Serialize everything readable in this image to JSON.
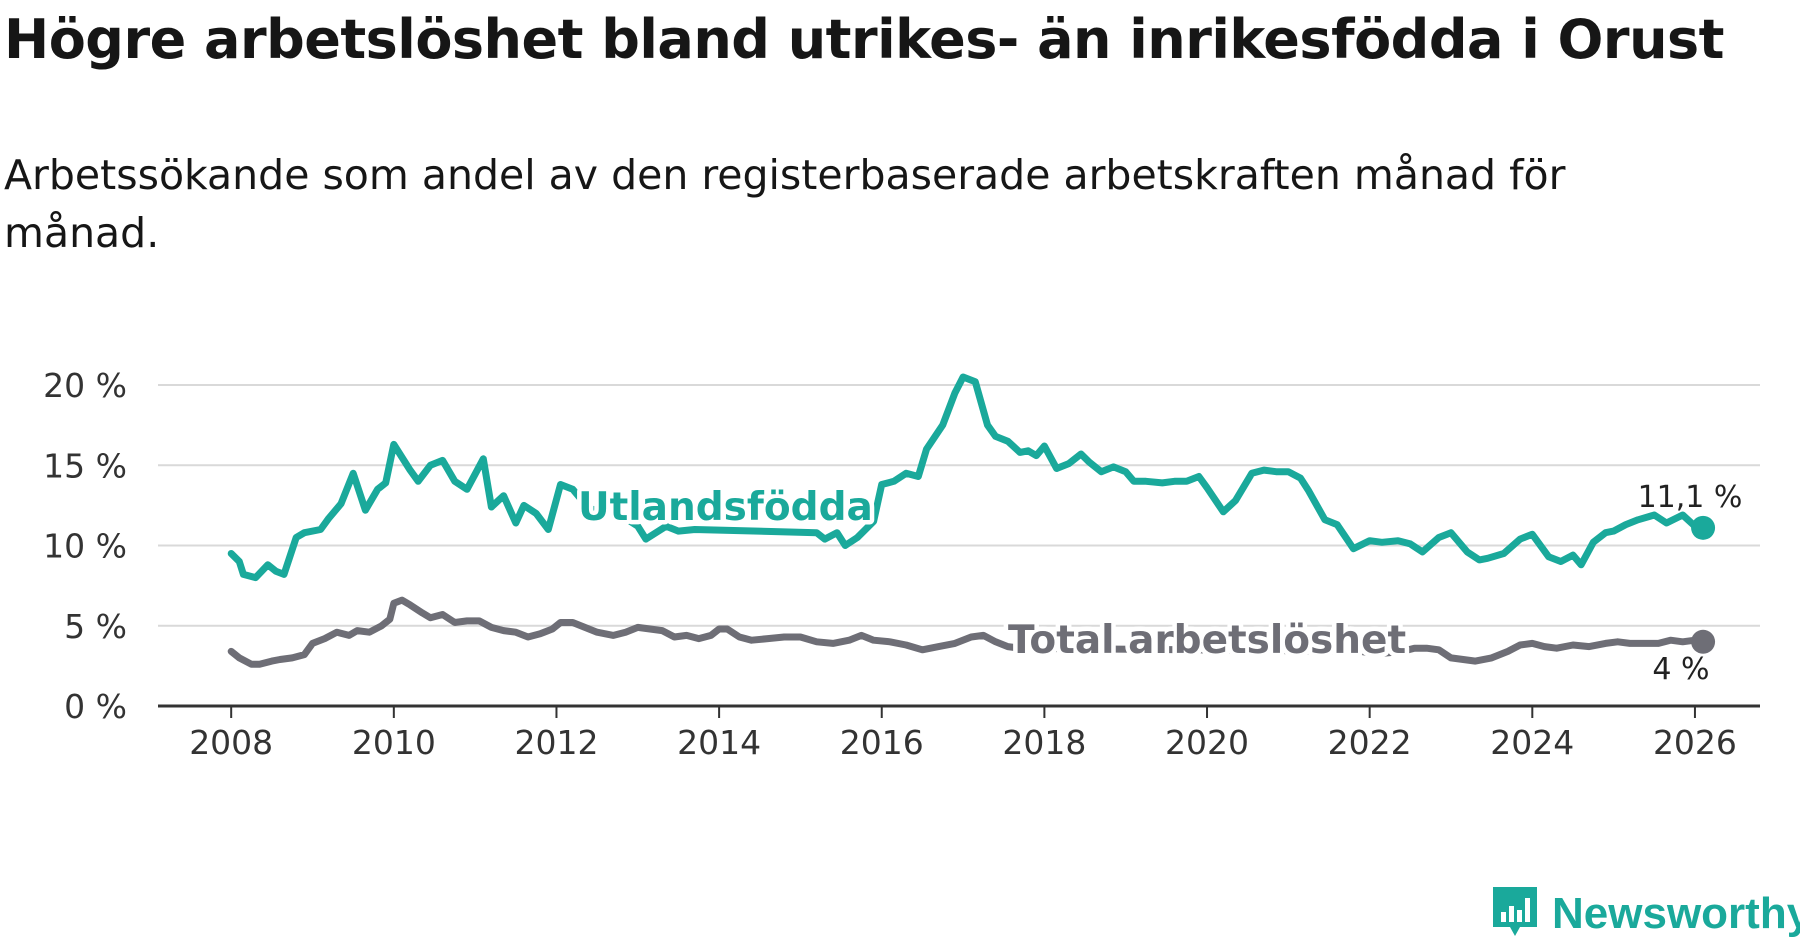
{
  "title": "Högre arbetslöshet bland utrikes- än inrikesfödda i Orust",
  "subtitle": "Arbetssökande som andel av den registerbaserade arbetskraften månad för månad.",
  "brand": {
    "name": "Newsworthy",
    "color": "#1aa99b"
  },
  "colors": {
    "foreign": "#1aa99b",
    "total": "#6e6e76",
    "grid": "#d9d9d9",
    "axis": "#333333"
  },
  "chart_data": {
    "type": "line",
    "ylim": [
      0,
      20
    ],
    "xlim": [
      2007.1,
      2026.8
    ],
    "yticks": [
      0,
      5,
      10,
      15,
      20
    ],
    "ytick_labels": [
      "0 %",
      "5 %",
      "10 %",
      "15 %",
      "20 %"
    ],
    "xticks": [
      2008,
      2010,
      2012,
      2014,
      2016,
      2018,
      2020,
      2022,
      2024,
      2026
    ],
    "xtick_labels": [
      "2008",
      "2010",
      "2012",
      "2014",
      "2016",
      "2018",
      "2020",
      "2022",
      "2024",
      "2026"
    ],
    "series": [
      {
        "name": "Utlandsfödda",
        "end_label": "11,1 %",
        "x": [
          2008.0,
          2008.1,
          2008.15,
          2008.3,
          2008.45,
          2008.55,
          2008.65,
          2008.8,
          2008.9,
          2009.1,
          2009.2,
          2009.35,
          2009.5,
          2009.65,
          2009.8,
          2009.9,
          2010.0,
          2010.2,
          2010.3,
          2010.45,
          2010.6,
          2010.75,
          2010.9,
          2011.1,
          2011.2,
          2011.35,
          2011.5,
          2011.6,
          2011.75,
          2011.9,
          2012.05,
          2012.2,
          2012.4,
          2012.5,
          2012.6,
          2013.0,
          2013.1,
          2013.35,
          2013.5,
          2013.7,
          2015.2,
          2015.3,
          2015.45,
          2015.55,
          2015.7,
          2015.9,
          2016.0,
          2016.15,
          2016.3,
          2016.45,
          2016.55,
          2016.75,
          2016.9,
          2017.0,
          2017.15,
          2017.3,
          2017.4,
          2017.55,
          2017.7,
          2017.8,
          2017.9,
          2018.0,
          2018.15,
          2018.3,
          2018.45,
          2018.55,
          2018.7,
          2018.85,
          2019.0,
          2019.1,
          2019.25,
          2019.45,
          2019.6,
          2019.75,
          2019.9,
          2020.0,
          2020.2,
          2020.35,
          2020.55,
          2020.7,
          2020.85,
          2021.0,
          2021.15,
          2021.25,
          2021.45,
          2021.6,
          2021.8,
          2022.0,
          2022.15,
          2022.35,
          2022.5,
          2022.65,
          2022.85,
          2023.0,
          2023.2,
          2023.35,
          2023.45,
          2023.65,
          2023.85,
          2024.0,
          2024.2,
          2024.35,
          2024.5,
          2024.6,
          2024.75,
          2024.9,
          2025.0,
          2025.15,
          2025.3,
          2025.5,
          2025.65,
          2025.85,
          2026.0,
          2026.1
        ],
        "values": [
          9.5,
          9.0,
          8.2,
          8.0,
          8.8,
          8.4,
          8.2,
          10.5,
          10.8,
          11.0,
          11.7,
          12.6,
          14.5,
          12.2,
          13.5,
          13.9,
          16.3,
          14.7,
          14.0,
          15.0,
          15.3,
          14.0,
          13.5,
          15.4,
          12.4,
          13.1,
          11.4,
          12.5,
          12.0,
          11.0,
          13.8,
          13.5,
          12.3,
          12.2,
          12.5,
          11.2,
          10.4,
          11.2,
          10.9,
          11.0,
          10.8,
          10.4,
          10.8,
          10.0,
          10.5,
          11.5,
          13.8,
          14.0,
          14.5,
          14.3,
          16.0,
          17.5,
          19.5,
          20.5,
          20.2,
          17.5,
          16.8,
          16.5,
          15.8,
          15.9,
          15.6,
          16.2,
          14.8,
          15.1,
          15.7,
          15.2,
          14.6,
          14.9,
          14.6,
          14.0,
          14.0,
          13.9,
          14.0,
          14.0,
          14.3,
          13.6,
          12.1,
          12.8,
          14.5,
          14.7,
          14.6,
          14.6,
          14.2,
          13.4,
          11.6,
          11.3,
          9.8,
          10.3,
          10.2,
          10.3,
          10.1,
          9.6,
          10.5,
          10.8,
          9.6,
          9.1,
          9.2,
          9.5,
          10.4,
          10.7,
          9.3,
          9.0,
          9.4,
          8.8,
          10.2,
          10.8,
          10.9,
          11.3,
          11.6,
          11.9,
          11.4,
          11.9,
          11.2,
          11.1
        ]
      },
      {
        "name": "Total arbetslöshet",
        "end_label": "4 %",
        "x": [
          2008.0,
          2008.1,
          2008.25,
          2008.35,
          2008.5,
          2008.6,
          2008.75,
          2008.9,
          2009.0,
          2009.15,
          2009.3,
          2009.45,
          2009.55,
          2009.7,
          2009.85,
          2009.95,
          2010.0,
          2010.1,
          2010.2,
          2010.35,
          2010.45,
          2010.6,
          2010.75,
          2010.9,
          2011.05,
          2011.2,
          2011.35,
          2011.5,
          2011.65,
          2011.8,
          2011.95,
          2012.05,
          2012.2,
          2012.35,
          2012.5,
          2012.7,
          2012.85,
          2013.0,
          2013.15,
          2013.3,
          2013.45,
          2013.6,
          2013.75,
          2013.9,
          2014.0,
          2014.1,
          2014.25,
          2014.4,
          2014.6,
          2014.8,
          2015.0,
          2015.2,
          2015.4,
          2015.6,
          2015.75,
          2015.9,
          2016.1,
          2016.3,
          2016.5,
          2016.7,
          2016.9,
          2017.1,
          2017.25,
          2017.4,
          2017.55,
          2017.7,
          2021.9,
          2022.0,
          2022.2,
          2022.4,
          2022.55,
          2022.7,
          2022.85,
          2023.0,
          2023.15,
          2023.3,
          2023.5,
          2023.7,
          2023.85,
          2024.0,
          2024.15,
          2024.3,
          2024.5,
          2024.7,
          2024.9,
          2025.05,
          2025.2,
          2025.4,
          2025.55,
          2025.7,
          2025.85,
          2026.0,
          2026.1
        ],
        "values": [
          3.4,
          3.0,
          2.6,
          2.6,
          2.8,
          2.9,
          3.0,
          3.2,
          3.9,
          4.2,
          4.6,
          4.4,
          4.7,
          4.6,
          5.0,
          5.4,
          6.4,
          6.6,
          6.3,
          5.8,
          5.5,
          5.7,
          5.2,
          5.3,
          5.3,
          4.9,
          4.7,
          4.6,
          4.3,
          4.5,
          4.8,
          5.2,
          5.2,
          4.9,
          4.6,
          4.4,
          4.6,
          4.9,
          4.8,
          4.7,
          4.3,
          4.4,
          4.2,
          4.4,
          4.8,
          4.8,
          4.3,
          4.1,
          4.2,
          4.3,
          4.3,
          4.0,
          3.9,
          4.1,
          4.4,
          4.1,
          4.0,
          3.8,
          3.5,
          3.7,
          3.9,
          4.3,
          4.4,
          4.0,
          3.7,
          3.6,
          3.4,
          3.3,
          3.3,
          3.4,
          3.6,
          3.6,
          3.5,
          3.0,
          2.9,
          2.8,
          3.0,
          3.4,
          3.8,
          3.9,
          3.7,
          3.6,
          3.8,
          3.7,
          3.9,
          4.0,
          3.9,
          3.9,
          3.9,
          4.1,
          4.0,
          4.1,
          4.0
        ]
      }
    ]
  }
}
